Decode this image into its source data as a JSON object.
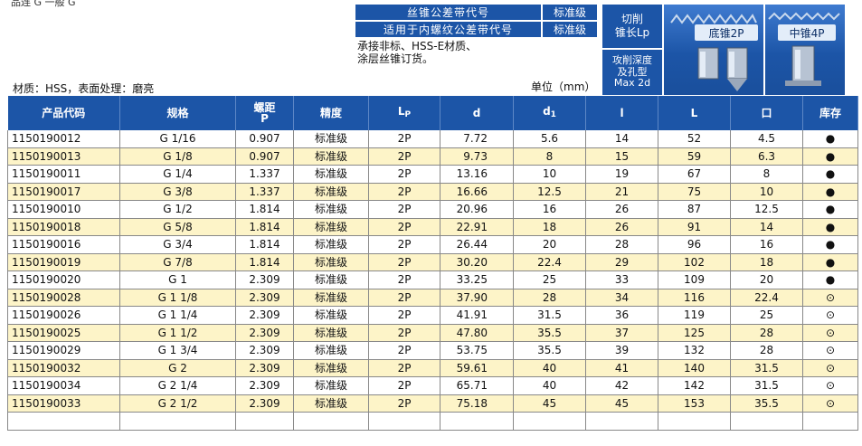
{
  "page": {
    "top_fragment": "品连  G  一般  G"
  },
  "spec": {
    "rows": [
      {
        "label": "丝锥公差带代号",
        "value": "标准级"
      },
      {
        "label": "适用于内螺纹公差带代号",
        "value": "标准级"
      }
    ],
    "note_lines": [
      "承接非标、HSS-E材质、",
      "涂层丝锥订货。"
    ]
  },
  "material_line": "材质：HSS，表面处理：磨亮",
  "unit_text": "单位（mm）",
  "tool_panel": {
    "cut_length": [
      "切削",
      "锥长Lp"
    ],
    "depth": [
      "攻削深度",
      "及孔型",
      "Max 2d"
    ],
    "bottom_taper": "底锥2P",
    "middle_taper": "中锥4P"
  },
  "table": {
    "headers": {
      "code": "产品代码",
      "spec": "规格",
      "pitch_top": "螺距",
      "pitch_bottom": "P",
      "precision": "精度",
      "lp_main": "L",
      "lp_sub": "P",
      "d": "d",
      "d1_main": "d",
      "d1_sub": "1",
      "l": "l",
      "L": "L",
      "square": "口",
      "stock": "库存"
    },
    "rows": [
      {
        "code": "1150190012",
        "spec": "G 1/16",
        "pitch": "0.907",
        "precision": "标准级",
        "lp": "2P",
        "d": "7.72",
        "d1": "5.6",
        "l": "14",
        "L": "52",
        "sq": "4.5",
        "stock": "●"
      },
      {
        "code": "1150190013",
        "spec": "G 1/8",
        "pitch": "0.907",
        "precision": "标准级",
        "lp": "2P",
        "d": "9.73",
        "d1": "8",
        "l": "15",
        "L": "59",
        "sq": "6.3",
        "stock": "●"
      },
      {
        "code": "1150190011",
        "spec": "G 1/4",
        "pitch": "1.337",
        "precision": "标准级",
        "lp": "2P",
        "d": "13.16",
        "d1": "10",
        "l": "19",
        "L": "67",
        "sq": "8",
        "stock": "●"
      },
      {
        "code": "1150190017",
        "spec": "G 3/8",
        "pitch": "1.337",
        "precision": "标准级",
        "lp": "2P",
        "d": "16.66",
        "d1": "12.5",
        "l": "21",
        "L": "75",
        "sq": "10",
        "stock": "●"
      },
      {
        "code": "1150190010",
        "spec": "G 1/2",
        "pitch": "1.814",
        "precision": "标准级",
        "lp": "2P",
        "d": "20.96",
        "d1": "16",
        "l": "26",
        "L": "87",
        "sq": "12.5",
        "stock": "●"
      },
      {
        "code": "1150190018",
        "spec": "G 5/8",
        "pitch": "1.814",
        "precision": "标准级",
        "lp": "2P",
        "d": "22.91",
        "d1": "18",
        "l": "26",
        "L": "91",
        "sq": "14",
        "stock": "●"
      },
      {
        "code": "1150190016",
        "spec": "G 3/4",
        "pitch": "1.814",
        "precision": "标准级",
        "lp": "2P",
        "d": "26.44",
        "d1": "20",
        "l": "28",
        "L": "96",
        "sq": "16",
        "stock": "●"
      },
      {
        "code": "1150190019",
        "spec": "G 7/8",
        "pitch": "1.814",
        "precision": "标准级",
        "lp": "2P",
        "d": "30.20",
        "d1": "22.4",
        "l": "29",
        "L": "102",
        "sq": "18",
        "stock": "●"
      },
      {
        "code": "1150190020",
        "spec": "G 1",
        "pitch": "2.309",
        "precision": "标准级",
        "lp": "2P",
        "d": "33.25",
        "d1": "25",
        "l": "33",
        "L": "109",
        "sq": "20",
        "stock": "●"
      },
      {
        "code": "1150190028",
        "spec": "G 1 1/8",
        "pitch": "2.309",
        "precision": "标准级",
        "lp": "2P",
        "d": "37.90",
        "d1": "28",
        "l": "34",
        "L": "116",
        "sq": "22.4",
        "stock": "⊙"
      },
      {
        "code": "1150190026",
        "spec": "G 1 1/4",
        "pitch": "2.309",
        "precision": "标准级",
        "lp": "2P",
        "d": "41.91",
        "d1": "31.5",
        "l": "36",
        "L": "119",
        "sq": "25",
        "stock": "⊙"
      },
      {
        "code": "1150190025",
        "spec": "G 1 1/2",
        "pitch": "2.309",
        "precision": "标准级",
        "lp": "2P",
        "d": "47.80",
        "d1": "35.5",
        "l": "37",
        "L": "125",
        "sq": "28",
        "stock": "⊙"
      },
      {
        "code": "1150190029",
        "spec": "G 1 3/4",
        "pitch": "2.309",
        "precision": "标准级",
        "lp": "2P",
        "d": "53.75",
        "d1": "35.5",
        "l": "39",
        "L": "132",
        "sq": "28",
        "stock": "⊙"
      },
      {
        "code": "1150190032",
        "spec": "G 2",
        "pitch": "2.309",
        "precision": "标准级",
        "lp": "2P",
        "d": "59.61",
        "d1": "40",
        "l": "41",
        "L": "140",
        "sq": "31.5",
        "stock": "⊙"
      },
      {
        "code": "1150190034",
        "spec": "G 2 1/4",
        "pitch": "2.309",
        "precision": "标准级",
        "lp": "2P",
        "d": "65.71",
        "d1": "40",
        "l": "42",
        "L": "142",
        "sq": "31.5",
        "stock": "⊙"
      },
      {
        "code": "1150190033",
        "spec": "G 2 1/2",
        "pitch": "2.309",
        "precision": "标准级",
        "lp": "2P",
        "d": "75.18",
        "d1": "45",
        "l": "45",
        "L": "153",
        "sq": "35.5",
        "stock": "⊙"
      }
    ]
  }
}
